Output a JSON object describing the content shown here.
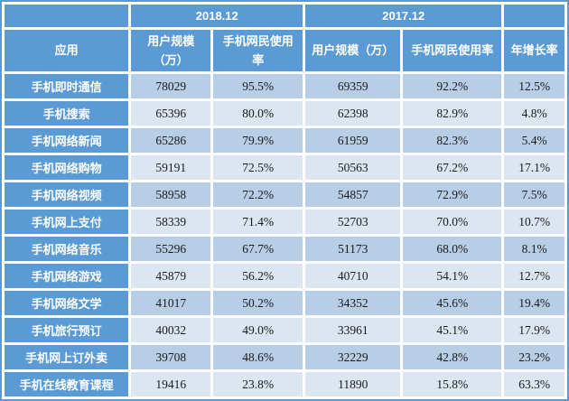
{
  "colors": {
    "header_blue": "#5b9bd5",
    "band_dark": "#b8cde6",
    "band_light": "#dce6f1",
    "header_text": "#ffffff",
    "value_text": "#1a1a1a",
    "table_border": "#5b9bd5",
    "grid_gap": "#ffffff"
  },
  "table": {
    "header_groups": {
      "col_2018": "2018.12",
      "col_2017": "2017.12"
    },
    "columns": {
      "app": "应用",
      "users_2018": "用户规模\n（万）",
      "usage_2018": "手机网民使用\n率",
      "users_2017": "用户规模（万）",
      "usage_2017": "手机网民使用率",
      "growth": "年增长率"
    },
    "rows": [
      {
        "app": "手机即时通信",
        "cells": [
          "78029",
          "95.5%",
          "69359",
          "92.2%",
          "12.5%"
        ]
      },
      {
        "app": "手机搜索",
        "cells": [
          "65396",
          "80.0%",
          "62398",
          "82.9%",
          "4.8%"
        ]
      },
      {
        "app": "手机网络新闻",
        "cells": [
          "65286",
          "79.9%",
          "61959",
          "82.3%",
          "5.4%"
        ]
      },
      {
        "app": "手机网络购物",
        "cells": [
          "59191",
          "72.5%",
          "50563",
          "67.2%",
          "17.1%"
        ]
      },
      {
        "app": "手机网络视频",
        "cells": [
          "58958",
          "72.2%",
          "54857",
          "72.9%",
          "7.5%"
        ]
      },
      {
        "app": "手机网上支付",
        "cells": [
          "58339",
          "71.4%",
          "52703",
          "70.0%",
          "10.7%"
        ]
      },
      {
        "app": "手机网络音乐",
        "cells": [
          "55296",
          "67.7%",
          "51173",
          "68.0%",
          "8.1%"
        ]
      },
      {
        "app": "手机网络游戏",
        "cells": [
          "45879",
          "56.2%",
          "40710",
          "54.1%",
          "12.7%"
        ]
      },
      {
        "app": "手机网络文学",
        "cells": [
          "41017",
          "50.2%",
          "34352",
          "45.6%",
          "19.4%"
        ]
      },
      {
        "app": "手机旅行预订",
        "cells": [
          "40032",
          "49.0%",
          "33961",
          "45.1%",
          "17.9%"
        ]
      },
      {
        "app": "手机网上订外卖",
        "cells": [
          "39708",
          "48.6%",
          "32229",
          "42.8%",
          "23.2%"
        ]
      },
      {
        "app": "手机在线教育课程",
        "cells": [
          "19416",
          "23.8%",
          "11890",
          "15.8%",
          "63.3%"
        ]
      }
    ]
  },
  "chart_data": {
    "type": "table",
    "title": "",
    "column_groups": [
      "",
      "2018.12",
      "2017.12",
      ""
    ],
    "columns": [
      "应用",
      "2018.12 用户规模（万）",
      "2018.12 手机网民使用率",
      "2017.12 用户规模（万）",
      "2017.12 手机网民使用率",
      "年增长率"
    ],
    "rows": [
      [
        "手机即时通信",
        78029,
        "95.5%",
        69359,
        "92.2%",
        "12.5%"
      ],
      [
        "手机搜索",
        65396,
        "80.0%",
        62398,
        "82.9%",
        "4.8%"
      ],
      [
        "手机网络新闻",
        65286,
        "79.9%",
        61959,
        "82.3%",
        "5.4%"
      ],
      [
        "手机网络购物",
        59191,
        "72.5%",
        50563,
        "67.2%",
        "17.1%"
      ],
      [
        "手机网络视频",
        58958,
        "72.2%",
        54857,
        "72.9%",
        "7.5%"
      ],
      [
        "手机网上支付",
        58339,
        "71.4%",
        52703,
        "70.0%",
        "10.7%"
      ],
      [
        "手机网络音乐",
        55296,
        "67.7%",
        51173,
        "68.0%",
        "8.1%"
      ],
      [
        "手机网络游戏",
        45879,
        "56.2%",
        40710,
        "54.1%",
        "12.7%"
      ],
      [
        "手机网络文学",
        41017,
        "50.2%",
        34352,
        "45.6%",
        "19.4%"
      ],
      [
        "手机旅行预订",
        40032,
        "49.0%",
        33961,
        "45.1%",
        "17.9%"
      ],
      [
        "手机网上订外卖",
        39708,
        "48.6%",
        32229,
        "42.8%",
        "23.2%"
      ],
      [
        "手机在线教育课程",
        19416,
        "23.8%",
        11890,
        "15.8%",
        "63.3%"
      ]
    ]
  }
}
